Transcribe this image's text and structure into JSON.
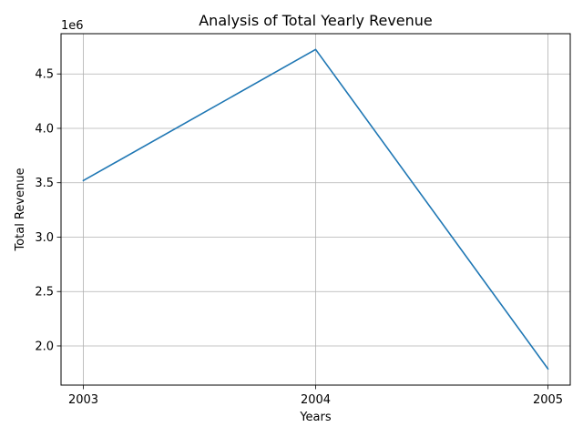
{
  "chart_data": {
    "type": "line",
    "title": "Analysis of Total Yearly Revenue",
    "xlabel": "Years",
    "ylabel": "Total Revenue",
    "y_offset_label": "1e6",
    "x": [
      "2003",
      "2004",
      "2005"
    ],
    "series": [
      {
        "values": [
          3520000,
          4725000,
          1790000
        ],
        "color": "#1f77b4"
      }
    ],
    "ylim": [
      1.64,
      4.87
    ],
    "y_scale_factor": 1000000,
    "yticks": [
      2.0,
      2.5,
      3.0,
      3.5,
      4.0,
      4.5
    ],
    "ytick_labels": [
      "2.0",
      "2.5",
      "3.0",
      "3.5",
      "4.0",
      "4.5"
    ],
    "grid": true
  }
}
